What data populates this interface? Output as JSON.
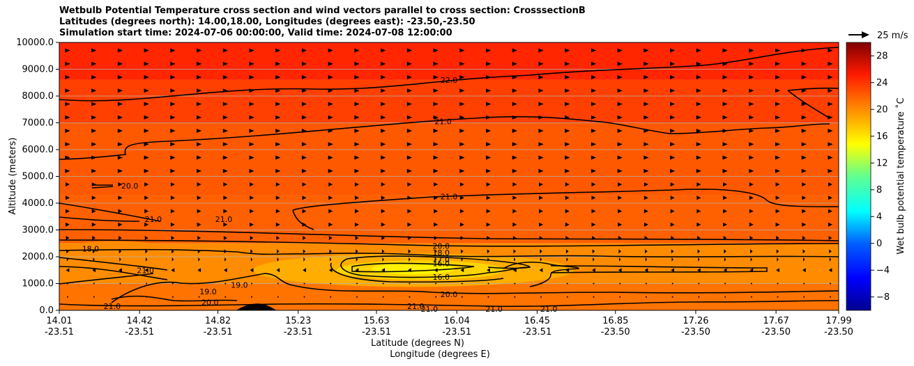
{
  "title": {
    "line1": "Wetbulb Potential Temperature cross section and wind vectors parallel to cross section: CrosssectionB",
    "line2": "Latitudes (degrees north): 14.00,18.00, Longitudes (degrees east): -23.50,-23.50",
    "line3": "Simulation start time: 2024-07-06 00:00:00, Valid time: 2024-07-08 12:00:00"
  },
  "chart_data": {
    "type": "contourf",
    "ylabel": "Altitude (meters)",
    "xlabel_lat": "Latitude (degrees N)",
    "xlabel_lon": "Longitude (degrees E)",
    "ylim": [
      0,
      10000
    ],
    "y_ticks": [
      "0.0",
      "1000.0",
      "2000.0",
      "3000.0",
      "4000.0",
      "5000.0",
      "6000.0",
      "7000.0",
      "8000.0",
      "9000.0",
      "10000.0"
    ],
    "x_ticks": [
      {
        "lat": "14.01",
        "lon": "-23.51"
      },
      {
        "lat": "14.42",
        "lon": "-23.51"
      },
      {
        "lat": "14.82",
        "lon": "-23.51"
      },
      {
        "lat": "15.23",
        "lon": "-23.51"
      },
      {
        "lat": "15.63",
        "lon": "-23.51"
      },
      {
        "lat": "16.04",
        "lon": "-23.51"
      },
      {
        "lat": "16.45",
        "lon": "-23.51"
      },
      {
        "lat": "16.85",
        "lon": "-23.50"
      },
      {
        "lat": "17.26",
        "lon": "-23.50"
      },
      {
        "lat": "17.67",
        "lon": "-23.50"
      },
      {
        "lat": "17.99",
        "lon": "-23.50"
      }
    ],
    "grid": "horizontal",
    "colorbar": {
      "label": "Wet bulb potential temperature ˚C",
      "range": [
        -10,
        30
      ],
      "ticks": [
        "28",
        "24",
        "20",
        "16",
        "12",
        "8",
        "4",
        "0",
        "−4",
        "−8"
      ],
      "colormap": "jet"
    },
    "quiver_key": {
      "label": "25 m/s",
      "value": 25
    },
    "contour_labels": [
      {
        "text": "22.0",
        "lat": 16.0,
        "alt": 8600
      },
      {
        "text": "21.0",
        "lat": 15.97,
        "alt": 7050
      },
      {
        "text": "21.0",
        "lat": 16.0,
        "alt": 4250
      },
      {
        "text": "20.0",
        "lat": 14.37,
        "alt": 4650
      },
      {
        "text": "21.0",
        "lat": 14.49,
        "alt": 3400
      },
      {
        "text": "21.0",
        "lat": 14.85,
        "alt": 3400
      },
      {
        "text": "18.0",
        "lat": 14.17,
        "alt": 2300
      },
      {
        "text": "21.0",
        "lat": 14.45,
        "alt": 1500
      },
      {
        "text": "20.0",
        "lat": 15.96,
        "alt": 2400
      },
      {
        "text": "18.0",
        "lat": 15.96,
        "alt": 2150
      },
      {
        "text": "17.0",
        "lat": 15.96,
        "alt": 1900
      },
      {
        "text": "16.0",
        "lat": 15.96,
        "alt": 1750
      },
      {
        "text": "16.0",
        "lat": 15.96,
        "alt": 1250
      },
      {
        "text": "19.0",
        "lat": 14.77,
        "alt": 700
      },
      {
        "text": "19.0",
        "lat": 14.93,
        "alt": 950
      },
      {
        "text": "20.0",
        "lat": 14.78,
        "alt": 300
      },
      {
        "text": "20.0",
        "lat": 16.0,
        "alt": 600
      },
      {
        "text": "21.0",
        "lat": 15.83,
        "alt": 150
      },
      {
        "text": "21.0",
        "lat": 15.9,
        "alt": 50
      },
      {
        "text": "21.0",
        "lat": 16.23,
        "alt": 50
      },
      {
        "text": "21.0",
        "lat": 16.51,
        "alt": 50
      },
      {
        "text": "21.0",
        "lat": 14.28,
        "alt": 150
      }
    ],
    "field_bands": [
      {
        "alt_top": 10000,
        "alt_bottom": 8600,
        "value": 23.5
      },
      {
        "alt_top": 8600,
        "alt_bottom": 7000,
        "value": 22.5
      },
      {
        "alt_top": 7000,
        "alt_bottom": 4300,
        "value": 21.5
      },
      {
        "alt_top": 4300,
        "alt_bottom": 2500,
        "value": 21.2
      },
      {
        "alt_top": 2500,
        "alt_bottom": 1000,
        "value": 19.5
      },
      {
        "alt_top": 1000,
        "alt_bottom": 0,
        "value": 20.5
      }
    ],
    "cold_core": {
      "lat_center": 15.96,
      "alt_center": 1500,
      "min_value": 15.5
    },
    "wind_profile": [
      {
        "alt": 9700,
        "u": 6
      },
      {
        "alt": 9200,
        "u": 6
      },
      {
        "alt": 8700,
        "u": 6
      },
      {
        "alt": 8200,
        "u": 6
      },
      {
        "alt": 7700,
        "u": 6
      },
      {
        "alt": 7200,
        "u": 6
      },
      {
        "alt": 6700,
        "u": 6
      },
      {
        "alt": 6200,
        "u": 6
      },
      {
        "alt": 5700,
        "u": 6
      },
      {
        "alt": 5200,
        "u": 6
      },
      {
        "alt": 4700,
        "u": 5
      },
      {
        "alt": 4200,
        "u": 5
      },
      {
        "alt": 3700,
        "u": 5
      },
      {
        "alt": 3200,
        "u": 5
      },
      {
        "alt": 2700,
        "u": 4
      },
      {
        "alt": 2200,
        "u": 3
      },
      {
        "alt": 1900,
        "u": 2
      },
      {
        "alt": 1500,
        "u": -4
      },
      {
        "alt": 1000,
        "u": 1
      },
      {
        "alt": 500,
        "u": 1
      }
    ],
    "terrain": {
      "lat_center": 15.0,
      "peak_alt": 200
    }
  }
}
